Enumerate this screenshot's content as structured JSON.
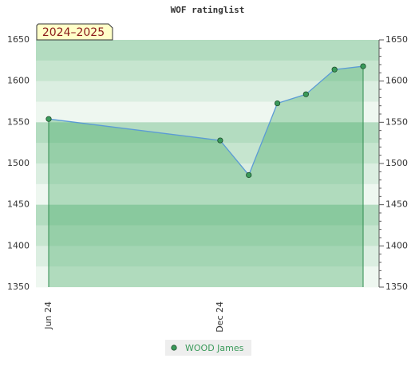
{
  "chart_data": {
    "type": "line",
    "title": "WOF ratinglist",
    "annotation": "2024–2025",
    "x": [
      "2024-06",
      "2024-12",
      "2025-01",
      "2025-02",
      "2025-03",
      "2025-04",
      "2025-05"
    ],
    "series": [
      {
        "name": "WOOD James",
        "color": "#5b9bd5",
        "marker_color": "#3a9a5a",
        "values": [
          1554,
          1528,
          1486,
          1573,
          1584,
          1614,
          1618
        ]
      }
    ],
    "xticks": [
      {
        "value": "2024-06",
        "label": "Jun 24"
      },
      {
        "value": "2024-12",
        "label": "Dec 24"
      }
    ],
    "ylim": [
      1350,
      1650
    ],
    "yticks": [
      1350,
      1400,
      1450,
      1500,
      1550,
      1600,
      1650
    ],
    "y2lim": [
      1350,
      1650
    ],
    "y2ticks": [
      1350,
      1400,
      1450,
      1500,
      1550,
      1600,
      1650
    ],
    "legend": "bottom"
  }
}
